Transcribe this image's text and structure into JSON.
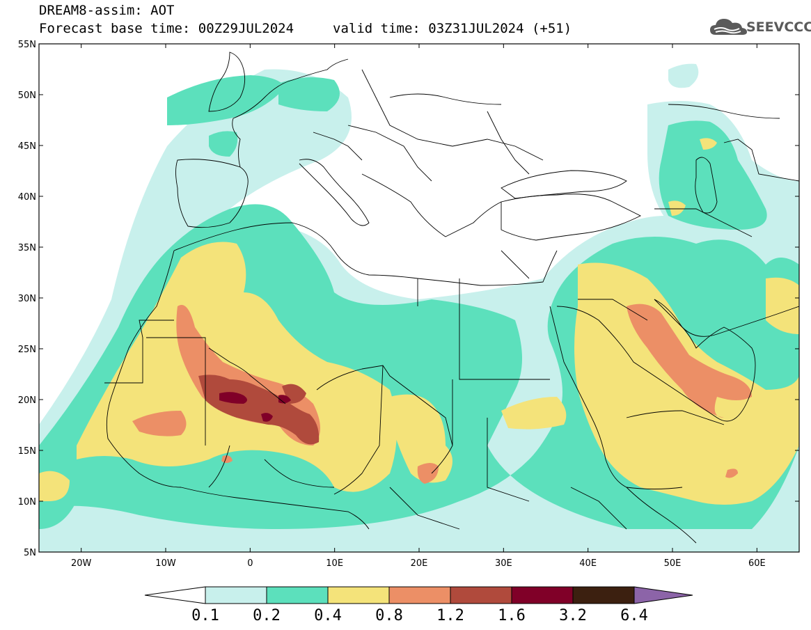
{
  "header": {
    "title": "DREAM8-assim: AOT",
    "forecast_base": "Forecast base time: 00Z29JUL2024",
    "valid_time": "valid time: 03Z31JUL2024 (+51)",
    "logo_text": "SEEVCCC"
  },
  "map": {
    "lon_range": [
      -25,
      65
    ],
    "lat_range": [
      5,
      55
    ],
    "lat_labels": [
      "55N",
      "50N",
      "45N",
      "40N",
      "35N",
      "30N",
      "25N",
      "20N",
      "15N",
      "10N",
      "5N"
    ],
    "lon_labels": [
      "20W",
      "10W",
      "0",
      "10E",
      "20E",
      "30E",
      "40E",
      "50E",
      "60E"
    ],
    "lat_ticks": [
      55,
      50,
      45,
      40,
      35,
      30,
      25,
      20,
      15,
      10,
      5
    ],
    "lon_ticks": [
      -20,
      -10,
      0,
      10,
      20,
      30,
      40,
      50,
      60
    ],
    "field": "AOT",
    "colors": {
      "0.1": "#c8f0ec",
      "0.2": "#5ce0bc",
      "0.4": "#f4e37a",
      "0.8": "#ec8f66",
      "1.2": "#b04a3c",
      "1.6": "#800028",
      "3.2": "#3c2010",
      "6.4": "#8c64a8"
    }
  },
  "colorbar": {
    "levels": [
      "0.1",
      "0.2",
      "0.4",
      "0.8",
      "1.2",
      "1.6",
      "3.2",
      "6.4"
    ],
    "colors": [
      "#c8f0ec",
      "#5ce0bc",
      "#f4e37a",
      "#ec8f66",
      "#b04a3c",
      "#800028",
      "#3c2010"
    ],
    "over_color": "#8c64a8",
    "under_color": "#ffffff"
  }
}
